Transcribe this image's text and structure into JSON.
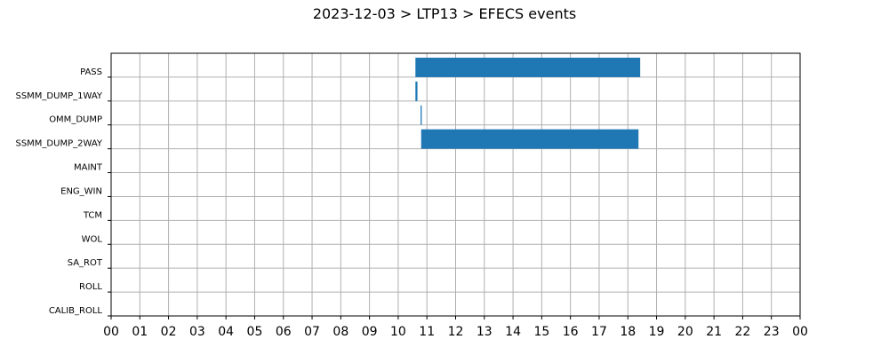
{
  "chart_data": {
    "type": "gantt",
    "title": "2023-12-03 > LTP13 > EFECS events",
    "xlabel": "",
    "ylabel": "",
    "x_tick_labels": [
      "00",
      "01",
      "02",
      "03",
      "04",
      "05",
      "06",
      "07",
      "08",
      "09",
      "10",
      "11",
      "12",
      "13",
      "14",
      "15",
      "16",
      "17",
      "18",
      "19",
      "20",
      "21",
      "22",
      "23",
      "00"
    ],
    "xlim_hours": [
      0,
      24
    ],
    "categories": [
      "PASS",
      "SSMM_DUMP_1WAY",
      "OMM_DUMP",
      "SSMM_DUMP_2WAY",
      "MAINT",
      "ENG_WIN",
      "TCM",
      "WOL",
      "SA_ROT",
      "ROLL",
      "CALIB_ROLL"
    ],
    "events": [
      {
        "category": "PASS",
        "start_hour": 10.6,
        "end_hour": 18.43
      },
      {
        "category": "SSMM_DUMP_1WAY",
        "start_hour": 10.6,
        "end_hour": 10.67
      },
      {
        "category": "OMM_DUMP",
        "start_hour": 10.78,
        "end_hour": 10.82
      },
      {
        "category": "SSMM_DUMP_2WAY",
        "start_hour": 10.8,
        "end_hour": 18.37
      }
    ],
    "grid": true,
    "bar_color": "#1f77b4"
  }
}
